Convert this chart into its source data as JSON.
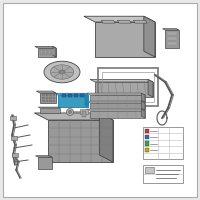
{
  "bg_color": "#e8e8e8",
  "fig_bg": "#e8e8e8",
  "white_bg": "#ffffff",
  "part_light": "#c8c8c8",
  "part_mid": "#a8a8a8",
  "part_dark": "#888888",
  "part_darker": "#686868",
  "highlight_blue": "#5bbfdf",
  "highlight_blue2": "#3a9dbf",
  "wire_color": "#555555",
  "edge_color": "#444444",
  "grid_color": "#666666"
}
